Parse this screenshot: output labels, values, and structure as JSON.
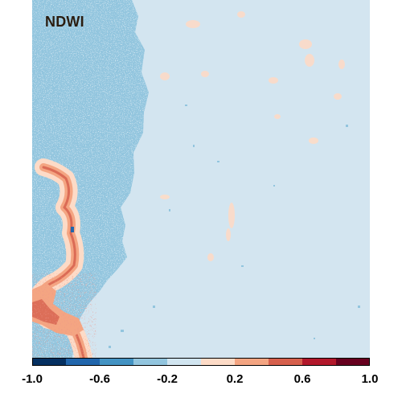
{
  "map": {
    "title": "NDWI",
    "value_range": [
      -1.0,
      1.0
    ],
    "colors": {
      "land_pale": "#d3e5f0",
      "vegetation_blue": "#92c5de",
      "dark_blue": "#4393c3",
      "water_light": "#fddbc7",
      "water_mid": "#f4a582",
      "water_strong": "#d6604d",
      "water_dark": "#b2182b"
    }
  },
  "legend": {
    "bins": [
      {
        "min": -1.0,
        "max": -0.8,
        "color": "#053061"
      },
      {
        "min": -0.8,
        "max": -0.6,
        "color": "#2166ac"
      },
      {
        "min": -0.6,
        "max": -0.4,
        "color": "#4393c3"
      },
      {
        "min": -0.4,
        "max": -0.2,
        "color": "#92c5de"
      },
      {
        "min": -0.2,
        "max": 0.0,
        "color": "#d1e5f0"
      },
      {
        "min": 0.0,
        "max": 0.2,
        "color": "#fddbc7"
      },
      {
        "min": 0.2,
        "max": 0.4,
        "color": "#f4a582"
      },
      {
        "min": 0.4,
        "max": 0.6,
        "color": "#d6604d"
      },
      {
        "min": 0.6,
        "max": 0.8,
        "color": "#b2182b"
      },
      {
        "min": 0.8,
        "max": 1.0,
        "color": "#67001f"
      }
    ],
    "ticks": [
      {
        "value": -1.0,
        "label": "-1.0"
      },
      {
        "value": -0.6,
        "label": "-0.6"
      },
      {
        "value": -0.2,
        "label": "-0.2"
      },
      {
        "value": 0.2,
        "label": "0.2"
      },
      {
        "value": 0.6,
        "label": "0.6"
      },
      {
        "value": 1.0,
        "label": "1.0"
      }
    ]
  }
}
